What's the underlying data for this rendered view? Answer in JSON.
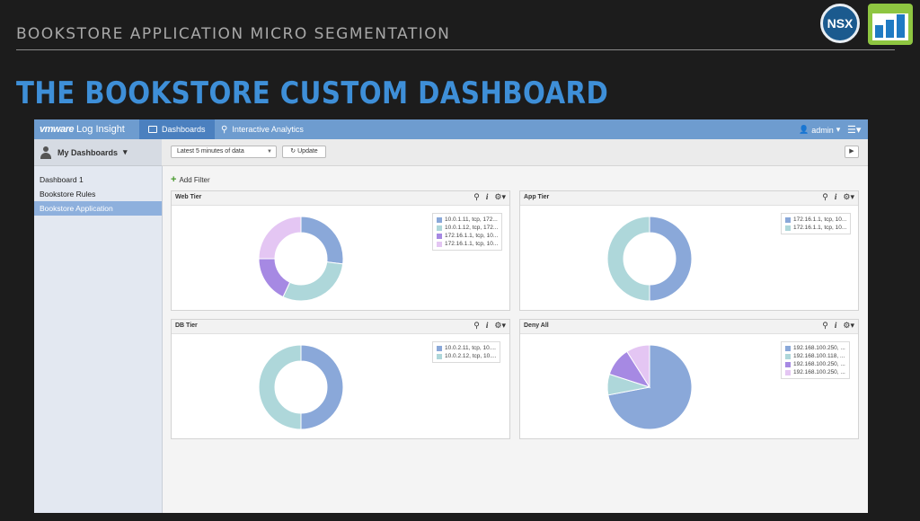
{
  "slide": {
    "header": "BOOKSTORE APPLICATION MICRO SEGMENTATION",
    "title": "THE BOOKSTORE CUSTOM DASHBOARD",
    "logo_text": "NSX"
  },
  "app": {
    "brand_vm": "vmware",
    "brand_product": "Log Insight",
    "nav": {
      "dashboards": "Dashboards",
      "interactive": "Interactive Analytics"
    },
    "user": "admin",
    "sidebar": {
      "title": "My Dashboards",
      "items": [
        {
          "label": "Dashboard 1"
        },
        {
          "label": "Bookstore Rules"
        },
        {
          "label": "Bookstore Application"
        }
      ]
    },
    "toolbar": {
      "time_range": "Latest 5 minutes of data",
      "update_label": "Update"
    },
    "add_filter": "Add Filter",
    "colors": {
      "c1": "#8aa8d9",
      "c2": "#aed7da",
      "c3": "#a689e3",
      "c4": "#e4c6f3"
    }
  },
  "chart_data": [
    {
      "type": "pie",
      "title": "Web Tier",
      "donut": true,
      "categories": [
        "10.0.1.11, tcp, 172...",
        "10.0.1.12, tcp, 172...",
        "172.16.1.1, tcp, 10...",
        "172.16.1.1, tcp, 10..."
      ],
      "values": [
        27,
        30,
        18,
        25
      ],
      "colors": [
        "#8aa8d9",
        "#aed7da",
        "#a689e3",
        "#e4c6f3"
      ]
    },
    {
      "type": "pie",
      "title": "App Tier",
      "donut": true,
      "categories": [
        "172.16.1.1, tcp, 10...",
        "172.16.1.1, tcp, 10..."
      ],
      "values": [
        50,
        50
      ],
      "colors": [
        "#8aa8d9",
        "#aed7da"
      ]
    },
    {
      "type": "pie",
      "title": "DB Tier",
      "donut": true,
      "categories": [
        "10.0.2.11, tcp, 10....",
        "10.0.2.12, tcp, 10...."
      ],
      "values": [
        50,
        50
      ],
      "colors": [
        "#8aa8d9",
        "#aed7da"
      ]
    },
    {
      "type": "pie",
      "title": "Deny All",
      "donut": false,
      "categories": [
        "192.168.100.250, ...",
        "192.168.100.118, ...",
        "192.168.100.250, ...",
        "192.168.100.250, ..."
      ],
      "values": [
        72,
        8,
        11,
        9
      ],
      "colors": [
        "#8aa8d9",
        "#aed7da",
        "#a689e3",
        "#e4c6f3"
      ]
    }
  ]
}
